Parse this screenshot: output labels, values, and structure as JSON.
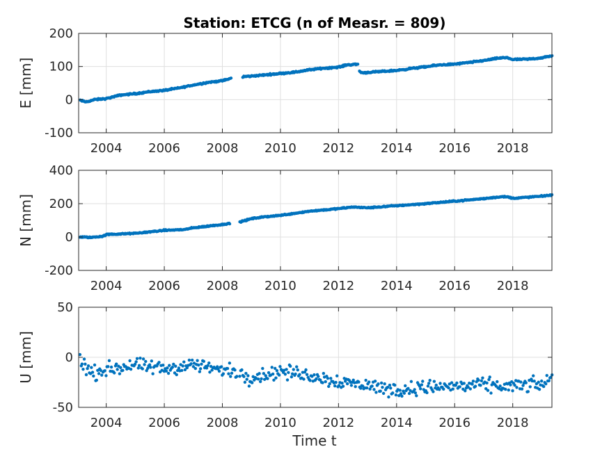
{
  "chart_data": {
    "title": "Station: ETCG (n of Measr. = 809)",
    "xlabel": "Time t",
    "marker_color": "#0072BD",
    "grid": true,
    "xlim": [
      2003.05,
      2019.35
    ],
    "xticks": [
      2004,
      2006,
      2008,
      2010,
      2012,
      2014,
      2016,
      2018
    ],
    "xtick_labels": [
      "2004",
      "2006",
      "2008",
      "2010",
      "2012",
      "2014",
      "2016",
      "2018"
    ],
    "panels": [
      {
        "type": "scatter",
        "ylabel": "E [mm]",
        "ylim": [
          -100,
          200
        ],
        "yticks": [
          -100,
          0,
          100,
          200
        ],
        "ytick_labels": [
          "-100",
          "0",
          "100",
          "200"
        ],
        "gaps": [
          [
            2008.4,
            2008.6
          ]
        ],
        "segments": [
          {
            "x": [
              2003.1,
              2003.3,
              2003.6,
              2004.0,
              2004.5,
              2005.0,
              2005.5,
              2006.0,
              2006.5,
              2007.0,
              2007.5,
              2008.0,
              2008.3
            ],
            "y": [
              -2,
              -7,
              0,
              3,
              14,
              18,
              24,
              28,
              35,
              44,
              52,
              57,
              64
            ]
          },
          {
            "x": [
              2008.7,
              2009.0,
              2009.5,
              2010.0,
              2010.5,
              2011.0,
              2011.5,
              2012.0,
              2012.3,
              2012.66
            ],
            "y": [
              69,
              71,
              75,
              79,
              83,
              90,
              95,
              98,
              105,
              107
            ]
          },
          {
            "x": [
              2012.72,
              2012.8,
              2013.0,
              2013.5,
              2014.0,
              2014.5,
              2015.0,
              2015.5,
              2016.0,
              2016.5,
              2017.0,
              2017.5,
              2017.8,
              2018.0,
              2018.5,
              2019.0,
              2019.35
            ],
            "y": [
              86,
              81,
              82,
              85,
              88,
              94,
              99,
              105,
              107,
              112,
              118,
              125,
              127,
              121,
              122,
              126,
              132
            ]
          }
        ],
        "noise": 1.5
      },
      {
        "type": "scatter",
        "ylabel": "N [mm]",
        "ylim": [
          -200,
          400
        ],
        "yticks": [
          -200,
          0,
          200,
          400
        ],
        "ytick_labels": [
          "-200",
          "0",
          "200",
          "400"
        ],
        "gaps": [
          [
            2008.3,
            2008.6
          ]
        ],
        "segments": [
          {
            "x": [
              2003.1,
              2003.5,
              2003.9,
              2004.0,
              2005.0,
              2006.0,
              2006.7,
              2007.0,
              2008.0,
              2008.25
            ],
            "y": [
              0,
              -2,
              5,
              15,
              22,
              40,
              45,
              55,
              75,
              82
            ]
          },
          {
            "x": [
              2008.6,
              2009.0,
              2009.5,
              2010.0,
              2011.0,
              2012.0,
              2012.5,
              2013.0,
              2014.0,
              2015.0,
              2016.0,
              2017.0,
              2017.5,
              2017.8,
              2018.0,
              2019.0,
              2019.35
            ],
            "y": [
              90,
              110,
              122,
              130,
              155,
              170,
              180,
              175,
              188,
              200,
              215,
              230,
              240,
              242,
              232,
              245,
              252
            ]
          }
        ],
        "noise": 2.5
      },
      {
        "type": "scatter",
        "ylabel": "U [mm]",
        "ylim": [
          -50,
          50
        ],
        "yticks": [
          -50,
          0,
          50
        ],
        "ytick_labels": [
          "-50",
          "0",
          "50"
        ],
        "gaps": [
          [
            2008.5,
            2008.6
          ]
        ],
        "segments": [
          {
            "x": [
              2003.1,
              2003.5,
              2004.0,
              2005.0,
              2006.0,
              2007.0,
              2008.0,
              2008.5
            ],
            "y": [
              -2,
              -17,
              -12,
              -8,
              -12,
              -7,
              -13,
              -14
            ]
          },
          {
            "x": [
              2008.6,
              2009.0,
              2010.0,
              2011.0,
              2012.0,
              2013.0,
              2014.0,
              2015.0,
              2016.0,
              2017.0,
              2018.0,
              2019.0,
              2019.35
            ],
            "y": [
              -18,
              -20,
              -14,
              -18,
              -24,
              -28,
              -33,
              -30,
              -29,
              -28,
              -29,
              -27,
              -22
            ]
          }
        ],
        "noise": 5
      }
    ]
  }
}
